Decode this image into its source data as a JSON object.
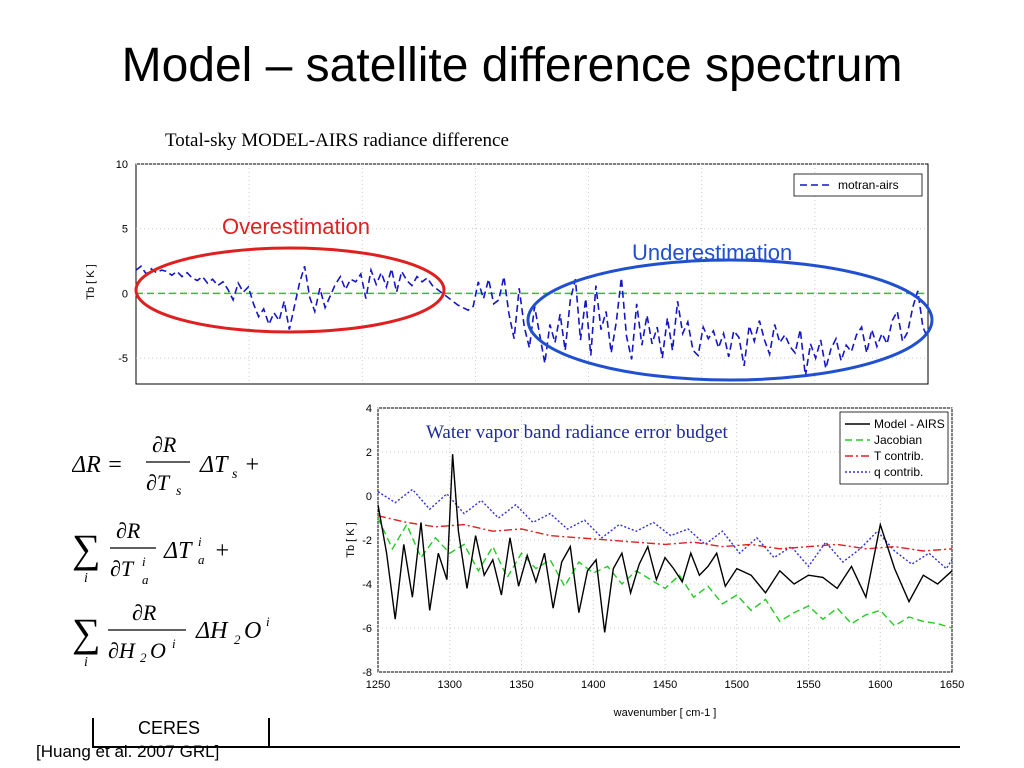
{
  "slide": {
    "title": "Model – satellite difference spectrum",
    "footer_ceres": "CERES",
    "citation": "[Huang et al. 2007 GRL]"
  },
  "annotations": {
    "overestimation": "Overestimation",
    "underestimation": "Underestimation",
    "over_color": "#e02020",
    "under_color": "#2050d0"
  },
  "equations": {
    "line1": "ΔR = ∂R/∂Tₛ ΔTₛ +",
    "line2": "Σᵢ ∂R/∂Tₐⁱ ΔTₐⁱ +",
    "line3": "Σᵢ ∂R/∂H₂Oⁱ ΔH₂Oⁱ"
  },
  "chart_data": [
    {
      "type": "line",
      "title": "Total-sky MODEL-AIRS radiance difference",
      "ylabel": "Tb [ K ]",
      "xlabel": "",
      "ylim": [
        -7,
        10
      ],
      "yticks": [
        -5,
        0,
        5,
        10
      ],
      "grid": true,
      "legend_position": "top-right",
      "series": [
        {
          "name": "motran-airs",
          "color": "#1515c8",
          "style": "dashed",
          "values": [
            1.8,
            2.1,
            1.5,
            1.9,
            1.6,
            1.8,
            1.7,
            1.4,
            1.7,
            1.3,
            1.6,
            1.2,
            1.0,
            1.3,
            0.8,
            1.1,
            0.6,
            0.9,
            0.3,
            -0.5,
            0.8,
            0.1,
            0.5,
            -0.8,
            -1.8,
            -1.2,
            -2.4,
            -1.5,
            -2.1,
            -0.6,
            -2.8,
            -1.0,
            0.8,
            2.1,
            -0.3,
            -1.4,
            0.4,
            -1.1,
            -0.2,
            0.7,
            1.3,
            0.3,
            1.1,
            0.9,
            1.5,
            -0.4,
            1.8,
            0.7,
            1.6,
            0.5,
            1.9,
            0.1,
            1.7,
            1.0,
            0.6,
            1.3,
            0.9,
            1.2,
            0.6,
            0.3,
            0.0,
            -0.3,
            -0.6,
            -0.9,
            -1.1,
            -1.3,
            -1.0,
            0.9,
            -0.4,
            1.1,
            -0.8,
            -0.5,
            1.3,
            -1.6,
            -3.5,
            0.4,
            -2.6,
            -4.2,
            -1.0,
            -3.2,
            -5.4,
            -2.4,
            -3.8,
            -1.6,
            -4.4,
            -0.5,
            1.1,
            -3.6,
            -0.4,
            -4.8,
            0.6,
            -2.8,
            -1.4,
            -4.6,
            -2.2,
            1.2,
            -3.3,
            -5.1,
            -0.8,
            -4.0,
            -1.7,
            -3.9,
            -2.6,
            -5.0,
            -1.9,
            -4.4,
            -0.6,
            -3.1,
            -2.2,
            -4.4,
            -4.8,
            -2.6,
            -3.5,
            -2.9,
            -4.2,
            -3.1,
            -4.9,
            -2.9,
            -3.4,
            -5.6,
            -2.5,
            -3.7,
            -2.1,
            -3.6,
            -4.7,
            -2.4,
            -3.8,
            -3.2,
            -4.1,
            -4.6,
            -2.8,
            -6.4,
            -3.9,
            -5.0,
            -3.6,
            -5.8,
            -4.3,
            -3.5,
            -5.2,
            -4.0,
            -4.5,
            -3.2,
            -2.6,
            -4.6,
            -2.8,
            -4.1,
            -3.1,
            -3.9,
            -2.1,
            -1.4,
            -3.7,
            -3.0,
            -1.1,
            0.2,
            -2.6,
            -3.5
          ]
        },
        {
          "name": "",
          "color": "#22cc22",
          "style": "dashed",
          "values": [
            0,
            0
          ]
        }
      ]
    },
    {
      "type": "line",
      "title": "Water vapor band radiance error budget",
      "xlabel": "wavenumber [ cm-1 ]",
      "ylabel": "Tb [ K ]",
      "xlim": [
        1250,
        1650
      ],
      "ylim": [
        -8,
        4
      ],
      "xticks": [
        1250,
        1300,
        1350,
        1400,
        1450,
        1500,
        1550,
        1600,
        1650
      ],
      "yticks": [
        -8,
        -6,
        -4,
        -2,
        0,
        2,
        4
      ],
      "grid": true,
      "legend_position": "top-right",
      "series": [
        {
          "name": "Model - AIRS",
          "color": "#000000",
          "style": "solid",
          "x": [
            1250,
            1256,
            1262,
            1268,
            1274,
            1280,
            1286,
            1292,
            1298,
            1302,
            1306,
            1312,
            1318,
            1324,
            1330,
            1336,
            1342,
            1348,
            1354,
            1360,
            1366,
            1372,
            1378,
            1384,
            1390,
            1396,
            1402,
            1408,
            1414,
            1420,
            1426,
            1432,
            1438,
            1444,
            1450,
            1456,
            1462,
            1468,
            1474,
            1480,
            1486,
            1492,
            1500,
            1510,
            1520,
            1530,
            1540,
            1550,
            1560,
            1570,
            1580,
            1590,
            1600,
            1610,
            1620,
            1630,
            1640,
            1650
          ],
          "values": [
            -0.4,
            -2.6,
            -5.6,
            -2.2,
            -4.6,
            -1.2,
            -5.2,
            -2.6,
            -3.8,
            1.9,
            -1.6,
            -4.2,
            -1.8,
            -3.6,
            -2.9,
            -4.5,
            -1.9,
            -4.1,
            -2.7,
            -3.9,
            -2.6,
            -5.1,
            -3.0,
            -2.3,
            -5.3,
            -3.4,
            -2.9,
            -6.2,
            -3.3,
            -2.6,
            -4.4,
            -3.1,
            -2.3,
            -3.8,
            -2.8,
            -3.3,
            -3.9,
            -2.6,
            -3.6,
            -3.2,
            -2.6,
            -4.1,
            -3.3,
            -3.6,
            -4.4,
            -3.4,
            -4.0,
            -3.6,
            -3.7,
            -4.2,
            -3.2,
            -4.6,
            -1.3,
            -3.3,
            -4.8,
            -3.6,
            -4.0,
            -3.4
          ]
        },
        {
          "name": "Jacobian",
          "color": "#22cc22",
          "style": "dashed",
          "x": [
            1250,
            1260,
            1270,
            1280,
            1290,
            1300,
            1310,
            1320,
            1330,
            1340,
            1350,
            1360,
            1370,
            1380,
            1390,
            1400,
            1410,
            1420,
            1430,
            1440,
            1450,
            1460,
            1470,
            1480,
            1490,
            1500,
            1510,
            1520,
            1530,
            1540,
            1550,
            1560,
            1570,
            1580,
            1590,
            1600,
            1610,
            1620,
            1630,
            1640,
            1650
          ],
          "values": [
            -1.0,
            -2.4,
            -1.3,
            -2.8,
            -1.9,
            -2.6,
            -2.2,
            -3.4,
            -2.3,
            -3.7,
            -2.6,
            -3.3,
            -2.9,
            -4.1,
            -3.0,
            -3.5,
            -3.2,
            -4.0,
            -3.4,
            -3.8,
            -4.2,
            -3.6,
            -4.6,
            -4.1,
            -4.9,
            -4.5,
            -5.2,
            -4.7,
            -5.7,
            -5.3,
            -5.0,
            -5.6,
            -5.1,
            -5.8,
            -5.4,
            -5.2,
            -5.9,
            -5.5,
            -5.7,
            -5.8,
            -6.0
          ]
        },
        {
          "name": "T contrib.",
          "color": "#e02020",
          "style": "dashdot",
          "x": [
            1250,
            1270,
            1290,
            1310,
            1330,
            1350,
            1370,
            1390,
            1410,
            1430,
            1450,
            1470,
            1490,
            1510,
            1530,
            1550,
            1570,
            1590,
            1610,
            1630,
            1650
          ],
          "values": [
            -0.9,
            -1.2,
            -1.4,
            -1.3,
            -1.6,
            -1.5,
            -1.8,
            -1.9,
            -2.0,
            -2.1,
            -2.2,
            -2.1,
            -2.3,
            -2.2,
            -2.4,
            -2.3,
            -2.2,
            -2.4,
            -2.3,
            -2.5,
            -2.4
          ]
        },
        {
          "name": "q contrib.",
          "color": "#3030e0",
          "style": "dotted",
          "x": [
            1250,
            1262,
            1274,
            1286,
            1298,
            1310,
            1322,
            1334,
            1346,
            1358,
            1370,
            1382,
            1394,
            1406,
            1418,
            1430,
            1442,
            1454,
            1466,
            1478,
            1490,
            1502,
            1514,
            1526,
            1538,
            1550,
            1562,
            1574,
            1586,
            1598,
            1610,
            1622,
            1634,
            1646,
            1650
          ],
          "values": [
            0.2,
            -0.3,
            0.3,
            -0.6,
            0.1,
            -0.8,
            -0.2,
            -1.0,
            -0.4,
            -1.2,
            -0.8,
            -1.5,
            -1.1,
            -1.9,
            -1.3,
            -1.6,
            -1.2,
            -1.8,
            -1.5,
            -2.2,
            -1.6,
            -2.6,
            -1.9,
            -2.8,
            -2.3,
            -3.2,
            -2.1,
            -3.0,
            -2.4,
            -1.6,
            -2.5,
            -3.1,
            -2.6,
            -3.3,
            -2.9
          ]
        }
      ]
    }
  ]
}
